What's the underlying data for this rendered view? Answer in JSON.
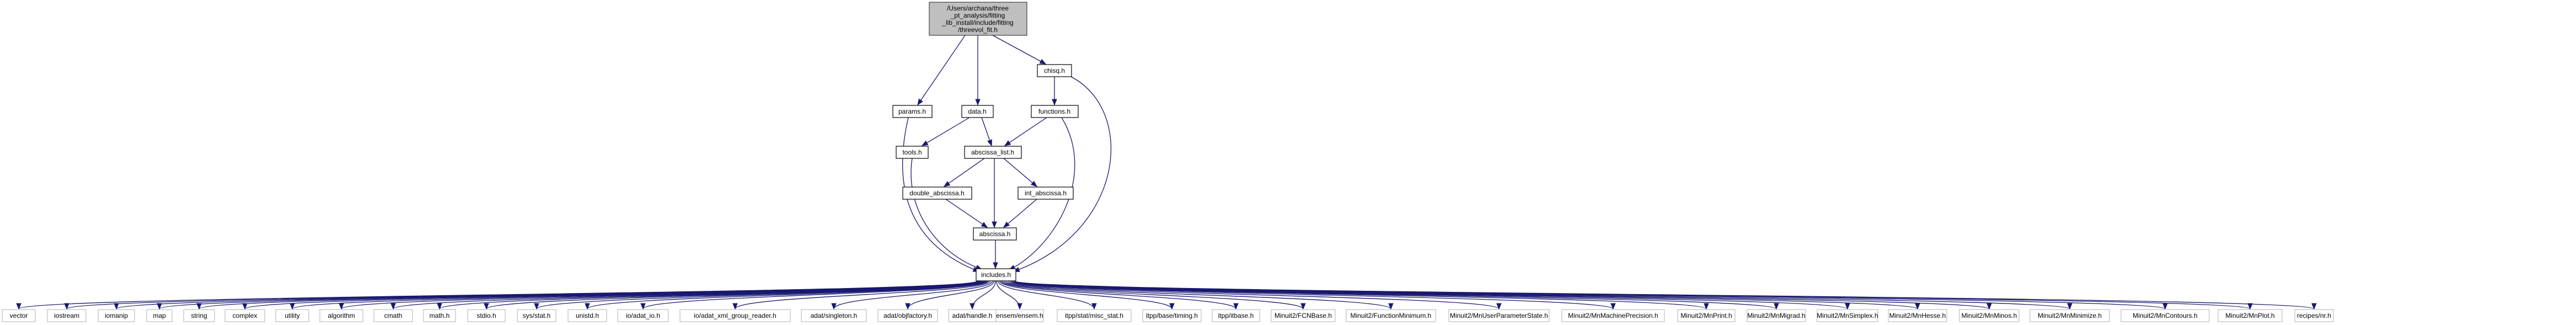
{
  "root": {
    "label_lines": [
      "/Users/archana/three",
      "_pt_analysis/fitting",
      "_lib_install/include/fitting",
      "/threevol_fit.h"
    ]
  },
  "nodes": {
    "chisq": "chisq.h",
    "params": "params.h",
    "data": "data.h",
    "functions": "functions.h",
    "tools": "tools.h",
    "abscissa_list": "abscissa_list.h",
    "double_abscissa": "double_abscissa.h",
    "int_abscissa": "int_abscissa.h",
    "abscissa": "abscissa.h",
    "includes": "includes.h"
  },
  "leaves": [
    "vector",
    "iostream",
    "iomanip",
    "map",
    "string",
    "complex",
    "utility",
    "algorithm",
    "cmath",
    "math.h",
    "stdio.h",
    "sys/stat.h",
    "unistd.h",
    "io/adat_io.h",
    "io/adat_xml_group_reader.h",
    "adat/singleton.h",
    "adat/objfactory.h",
    "adat/handle.h",
    "ensem/ensem.h",
    "itpp/stat/misc_stat.h",
    "itpp/base/timing.h",
    "itpp/itbase.h",
    "Minuit2/FCNBase.h",
    "Minuit2/FunctionMinimum.h",
    "Minuit2/MnUserParameterState.h",
    "Minuit2/MnMachinePrecision.h",
    "Minuit2/MnPrint.h",
    "Minuit2/MnMigrad.h",
    "Minuit2/MnSimplex.h",
    "Minuit2/MnHesse.h",
    "Minuit2/MnMinos.h",
    "Minuit2/MnMinimize.h",
    "Minuit2/MnContours.h",
    "Minuit2/MnPlot.h",
    "recipes/nr.h"
  ],
  "colors": {
    "edge": "#191970",
    "root_fill": "#bfbfbf",
    "leaf_border": "#bfbfbf"
  }
}
